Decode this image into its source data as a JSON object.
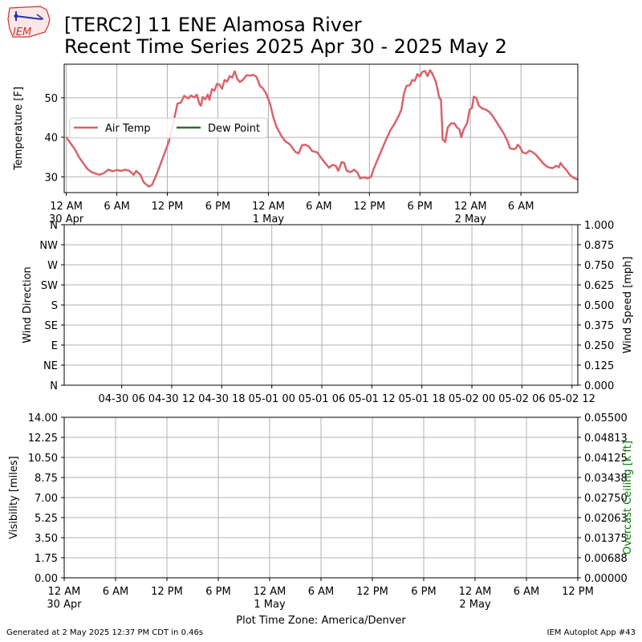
{
  "header": {
    "title_line1": "[TERC2] 11 ENE Alamosa River",
    "title_line2": "Recent Time Series 2025 Apr 30 - 2025 May 2",
    "logo_text": "IEM"
  },
  "footer": {
    "generated": "Generated at 2 May 2025 12:37 PM CDT in 0.46s",
    "app": "IEM Autoplot App #43"
  },
  "colors": {
    "air_temp": "#d9636a",
    "dew_point": "#2e6b2e",
    "ceiling_label": "#008000",
    "grid": "#b0b0b0"
  },
  "chart_data": [
    {
      "type": "line",
      "panel": "temperature",
      "ylabel": "Temperature [F]",
      "ylim": [
        26,
        58.5
      ],
      "yticks": [
        30,
        40,
        50
      ],
      "xlim_hours": [
        -0.25,
        60.75
      ],
      "x_tick_hours": [
        0,
        6,
        12,
        18,
        24,
        30,
        36,
        42,
        48,
        54
      ],
      "x_tick_labels": [
        "12 AM\n30 Apr",
        "6 AM",
        "12 PM",
        "6 PM",
        "12 AM\n1 May",
        "6 AM",
        "12 PM",
        "6 PM",
        "12 AM\n2 May",
        "6 AM"
      ],
      "grid": true,
      "legend": {
        "placement": "center-left",
        "entries": [
          "Air Temp",
          "Dew Point"
        ]
      },
      "series": [
        {
          "name": "Air Temp",
          "points": [
            [
              0,
              40
            ],
            [
              0.5,
              38.5
            ],
            [
              1,
              37
            ],
            [
              1.5,
              35
            ],
            [
              2,
              33.5
            ],
            [
              2.5,
              32
            ],
            [
              3,
              31.2
            ],
            [
              3.5,
              30.8
            ],
            [
              4,
              30.5
            ],
            [
              4.5,
              31
            ],
            [
              5,
              31.8
            ],
            [
              5.5,
              31.4
            ],
            [
              6,
              31.7
            ],
            [
              6.5,
              31.5
            ],
            [
              7,
              31.8
            ],
            [
              7.5,
              31.5
            ],
            [
              8,
              30.5
            ],
            [
              8.3,
              31.5
            ],
            [
              8.8,
              30.5
            ],
            [
              9.2,
              28.6
            ],
            [
              9.8,
              27.5
            ],
            [
              10.2,
              28
            ],
            [
              10.8,
              31
            ],
            [
              11.5,
              35
            ],
            [
              12.2,
              39
            ],
            [
              12.7,
              43.5
            ],
            [
              13.2,
              48.5
            ],
            [
              13.6,
              48.8
            ],
            [
              14,
              50.5
            ],
            [
              14.5,
              49.8
            ],
            [
              14.8,
              50.6
            ],
            [
              15.2,
              50.1
            ],
            [
              15.5,
              50.8
            ],
            [
              15.8,
              48.5
            ],
            [
              16,
              48
            ],
            [
              16.2,
              50.2
            ],
            [
              16.5,
              49.6
            ],
            [
              16.8,
              50.8
            ],
            [
              17,
              49.5
            ],
            [
              17.3,
              52.2
            ],
            [
              17.6,
              51.8
            ],
            [
              17.9,
              53.5
            ],
            [
              18.2,
              53.3
            ],
            [
              18.5,
              52.3
            ],
            [
              18.8,
              54.5
            ],
            [
              19.1,
              54.1
            ],
            [
              19.4,
              55.5
            ],
            [
              19.7,
              55.1
            ],
            [
              20,
              56.7
            ],
            [
              20.3,
              54.8
            ],
            [
              20.6,
              54
            ],
            [
              21,
              54.6
            ],
            [
              21.4,
              55.7
            ],
            [
              21.8,
              55.6
            ],
            [
              22.2,
              55.8
            ],
            [
              22.6,
              55.3
            ],
            [
              23,
              53
            ],
            [
              23.3,
              52.5
            ],
            [
              23.7,
              51.2
            ],
            [
              24.2,
              48.5
            ],
            [
              24.6,
              45
            ],
            [
              25,
              42.5
            ],
            [
              25.5,
              40.5
            ],
            [
              26,
              39
            ],
            [
              26.5,
              38.3
            ],
            [
              26.8,
              37.5
            ],
            [
              27.2,
              36.3
            ],
            [
              27.6,
              35.9
            ],
            [
              28,
              38
            ],
            [
              28.4,
              38.1
            ],
            [
              28.8,
              37.7
            ],
            [
              29.2,
              36.5
            ],
            [
              29.8,
              36.2
            ],
            [
              30.2,
              35
            ],
            [
              30.7,
              33.6
            ],
            [
              31.2,
              32.3
            ],
            [
              31.6,
              33
            ],
            [
              32,
              32.8
            ],
            [
              32.3,
              31.5
            ],
            [
              32.7,
              33.7
            ],
            [
              33,
              33.5
            ],
            [
              33.3,
              31.5
            ],
            [
              33.8,
              31.2
            ],
            [
              34.2,
              31.8
            ],
            [
              34.6,
              31
            ],
            [
              34.9,
              29.6
            ],
            [
              35.3,
              29.9
            ],
            [
              35.8,
              29.6
            ],
            [
              36.2,
              30
            ],
            [
              36.5,
              32
            ],
            [
              37,
              34.5
            ],
            [
              37.5,
              37
            ],
            [
              38,
              39.5
            ],
            [
              38.5,
              41.8
            ],
            [
              39,
              43.5
            ],
            [
              39.5,
              45.5
            ],
            [
              39.8,
              47
            ],
            [
              40.1,
              51
            ],
            [
              40.4,
              53
            ],
            [
              40.8,
              53.2
            ],
            [
              41.1,
              54.5
            ],
            [
              41.4,
              54.3
            ],
            [
              41.7,
              56
            ],
            [
              42,
              55.4
            ],
            [
              42.3,
              56.6
            ],
            [
              42.6,
              56.8
            ],
            [
              42.9,
              55.5
            ],
            [
              43.2,
              57
            ],
            [
              43.5,
              56
            ],
            [
              43.9,
              54
            ],
            [
              44.3,
              50
            ],
            [
              44.5,
              49.5
            ],
            [
              44.7,
              39.5
            ],
            [
              45,
              38.8
            ],
            [
              45.3,
              42.5
            ],
            [
              45.7,
              43.5
            ],
            [
              46.1,
              43.5
            ],
            [
              46.4,
              42.5
            ],
            [
              46.7,
              42
            ],
            [
              46.9,
              40
            ],
            [
              47.2,
              42
            ],
            [
              47.6,
              43.5
            ],
            [
              47.9,
              47
            ],
            [
              48.2,
              47.5
            ],
            [
              48.4,
              50.3
            ],
            [
              48.7,
              49.9
            ],
            [
              49,
              48
            ],
            [
              49.4,
              47.3
            ],
            [
              49.8,
              47
            ],
            [
              50.2,
              46.5
            ],
            [
              50.6,
              45.5
            ],
            [
              51,
              44.2
            ],
            [
              51.5,
              42.5
            ],
            [
              52,
              40.8
            ],
            [
              52.4,
              39
            ],
            [
              52.7,
              37.2
            ],
            [
              53.1,
              37
            ],
            [
              53.4,
              37.2
            ],
            [
              53.6,
              38.1
            ],
            [
              53.9,
              37.5
            ],
            [
              54.2,
              36.2
            ],
            [
              54.6,
              35.9
            ],
            [
              55,
              36.6
            ],
            [
              55.4,
              36.2
            ],
            [
              55.8,
              35.5
            ],
            [
              56.2,
              34.5
            ],
            [
              56.6,
              33.5
            ],
            [
              57,
              32.7
            ],
            [
              57.4,
              32.3
            ],
            [
              57.8,
              32.2
            ],
            [
              58.2,
              32.8
            ],
            [
              58.5,
              32.4
            ],
            [
              58.7,
              33.5
            ],
            [
              59,
              32.6
            ],
            [
              59.4,
              31.7
            ],
            [
              59.8,
              30.5
            ],
            [
              60.2,
              29.8
            ],
            [
              60.6,
              29.4
            ],
            [
              61,
              29.3
            ],
            [
              61.4,
              29
            ],
            [
              61.6,
              29.8
            ],
            [
              61.9,
              29.2
            ],
            [
              62.2,
              28.8
            ],
            [
              62.5,
              29
            ],
            [
              62.7,
              28.5
            ],
            [
              62.9,
              30.2
            ],
            [
              63.2,
              29.8
            ],
            [
              63.5,
              30.7
            ],
            [
              63.9,
              30.7
            ],
            [
              64.3,
              31.6
            ],
            [
              64.8,
              33.5
            ],
            [
              65.3,
              35.5
            ],
            [
              65.8,
              37.5
            ],
            [
              66.2,
              42
            ],
            [
              66.5,
              45
            ],
            [
              66.8,
              46.2
            ],
            [
              67.1,
              46.6
            ],
            [
              67.5,
              47.8
            ],
            [
              67.9,
              48.5
            ],
            [
              68.3,
              49
            ],
            [
              68.7,
              49.2
            ],
            [
              69,
              50.5
            ],
            [
              69.4,
              51.2
            ],
            [
              69.8,
              51.5
            ]
          ]
        },
        {
          "name": "Dew Point",
          "points": []
        }
      ]
    },
    {
      "type": "line",
      "panel": "wind",
      "ylabel": "Wind Direction",
      "ylabel_right": "Wind Speed [mph]",
      "yticks_left": [
        "N",
        "NE",
        "E",
        "SE",
        "S",
        "SW",
        "W",
        "NW",
        "N"
      ],
      "yticks_right": [
        "0.000",
        "0.125",
        "0.250",
        "0.375",
        "0.500",
        "0.625",
        "0.750",
        "0.875",
        "1.000"
      ],
      "x_tick_hours": [
        6,
        12,
        18,
        24,
        30,
        36,
        42,
        48,
        54,
        60
      ],
      "x_tick_labels": [
        "04-30 06",
        "04-30 12",
        "04-30 18",
        "05-01 00",
        "05-01 06",
        "05-01 12",
        "05-01 18",
        "05-02 00",
        "05-02 06",
        "05-02 12"
      ],
      "grid": true,
      "series": []
    },
    {
      "type": "line",
      "panel": "visibility",
      "ylabel": "Visibility [miles]",
      "ylabel_right": "Overcast Ceiling [k ft]",
      "yticks_left": [
        "0.00",
        "1.75",
        "3.50",
        "5.25",
        "7.00",
        "8.75",
        "10.50",
        "12.25",
        "14.00"
      ],
      "yticks_right": [
        "0.00000",
        "0.00688",
        "0.01375",
        "0.02063",
        "0.02750",
        "0.03438",
        "0.04125",
        "0.04813",
        "0.05500"
      ],
      "x_tick_hours": [
        0,
        6,
        12,
        18,
        24,
        30,
        36,
        42,
        48,
        54,
        60
      ],
      "x_tick_labels": [
        "12 AM\n30 Apr",
        "6 AM",
        "12 PM",
        "6 PM",
        "12 AM\n1 May",
        "6 AM",
        "12 PM",
        "6 PM",
        "12 AM\n2 May",
        "6 AM",
        "12 PM"
      ],
      "xlabel": "Plot Time Zone: America/Denver",
      "grid": true,
      "series": []
    }
  ]
}
